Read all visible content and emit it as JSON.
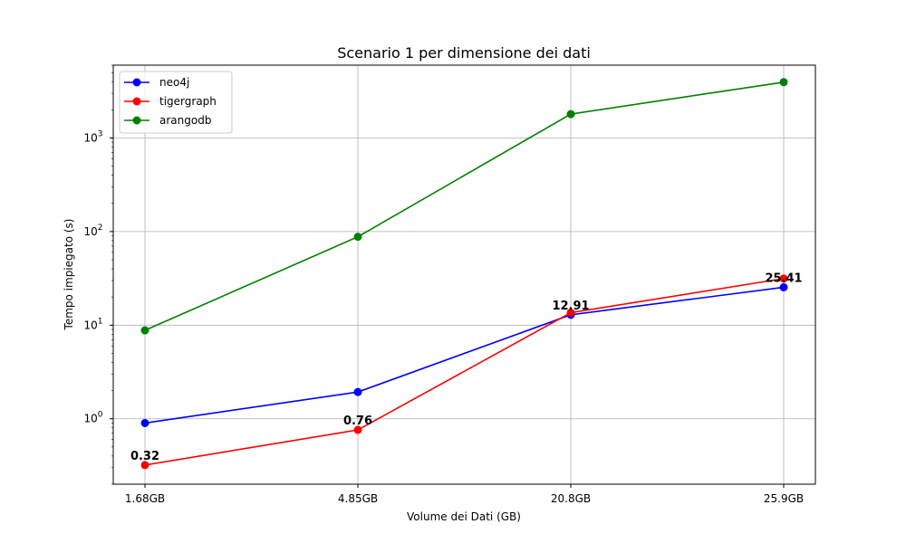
{
  "chart_data": {
    "type": "line",
    "title": "Scenario 1 per dimensione dei dati",
    "xlabel": "Volume dei Dati (GB)",
    "ylabel": "Tempo impiegato (s)",
    "categories": [
      "1.68GB",
      "4.85GB",
      "20.8GB",
      "25.9GB"
    ],
    "y_scale": "log",
    "ylim": [
      0.2,
      6000
    ],
    "y_ticks": [
      {
        "value": 1,
        "base": "10",
        "exp": "0"
      },
      {
        "value": 10,
        "base": "10",
        "exp": "1"
      },
      {
        "value": 100,
        "base": "10",
        "exp": "2"
      },
      {
        "value": 1000,
        "base": "10",
        "exp": "3"
      }
    ],
    "grid": true,
    "legend_position": "top-left",
    "series": [
      {
        "name": "neo4j",
        "color": "#0000ff",
        "values": [
          0.9,
          1.93,
          12.91,
          25.41
        ]
      },
      {
        "name": "tigergraph",
        "color": "#ff0000",
        "values": [
          0.32,
          0.76,
          13.6,
          31.5
        ]
      },
      {
        "name": "arangodb",
        "color": "#008000",
        "values": [
          8.8,
          88,
          1800,
          3950
        ]
      }
    ],
    "annotations": [
      {
        "text": "0.32",
        "category_index": 0,
        "value": 0.32
      },
      {
        "text": "0.76",
        "category_index": 1,
        "value": 0.76
      },
      {
        "text": "12.91",
        "category_index": 2,
        "value": 12.91
      },
      {
        "text": "25.41",
        "category_index": 3,
        "value": 25.41
      }
    ]
  }
}
